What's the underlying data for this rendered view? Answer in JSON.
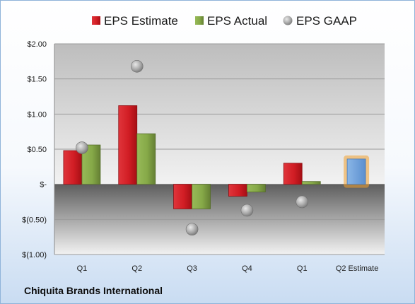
{
  "company": "Chiquita Brands International",
  "legend": {
    "estimate": "EPS Estimate",
    "actual": "EPS Actual",
    "gaap": "EPS GAAP"
  },
  "colors": {
    "estimate": "#c8161d",
    "actual": "#7ea040",
    "gaap": "#a7a7a7",
    "projected": "#6d9fd8",
    "projected_glow": "#f0a030"
  },
  "chart_data": {
    "type": "bar",
    "categories": [
      "Q1",
      "Q2",
      "Q3",
      "Q4",
      "Q1",
      "Q2 Estimate"
    ],
    "series": [
      {
        "name": "EPS Estimate",
        "values": [
          0.48,
          1.12,
          -0.35,
          -0.17,
          0.3,
          0.36
        ]
      },
      {
        "name": "EPS Actual",
        "values": [
          0.56,
          0.72,
          -0.35,
          -0.11,
          0.04,
          null
        ]
      },
      {
        "name": "EPS GAAP",
        "values": [
          0.52,
          1.68,
          -0.64,
          -0.37,
          -0.25,
          null
        ]
      }
    ],
    "ylim": [
      -1.0,
      2.0
    ],
    "yticks": [
      2.0,
      1.5,
      1.0,
      0.5,
      0,
      -0.5,
      -1.0
    ],
    "ytick_labels": [
      "$2.00",
      "$1.50",
      "$1.00",
      "$0.50",
      "$-",
      "$(0.50)",
      "$(1.00)"
    ],
    "grid": true,
    "legend_position": "top"
  }
}
